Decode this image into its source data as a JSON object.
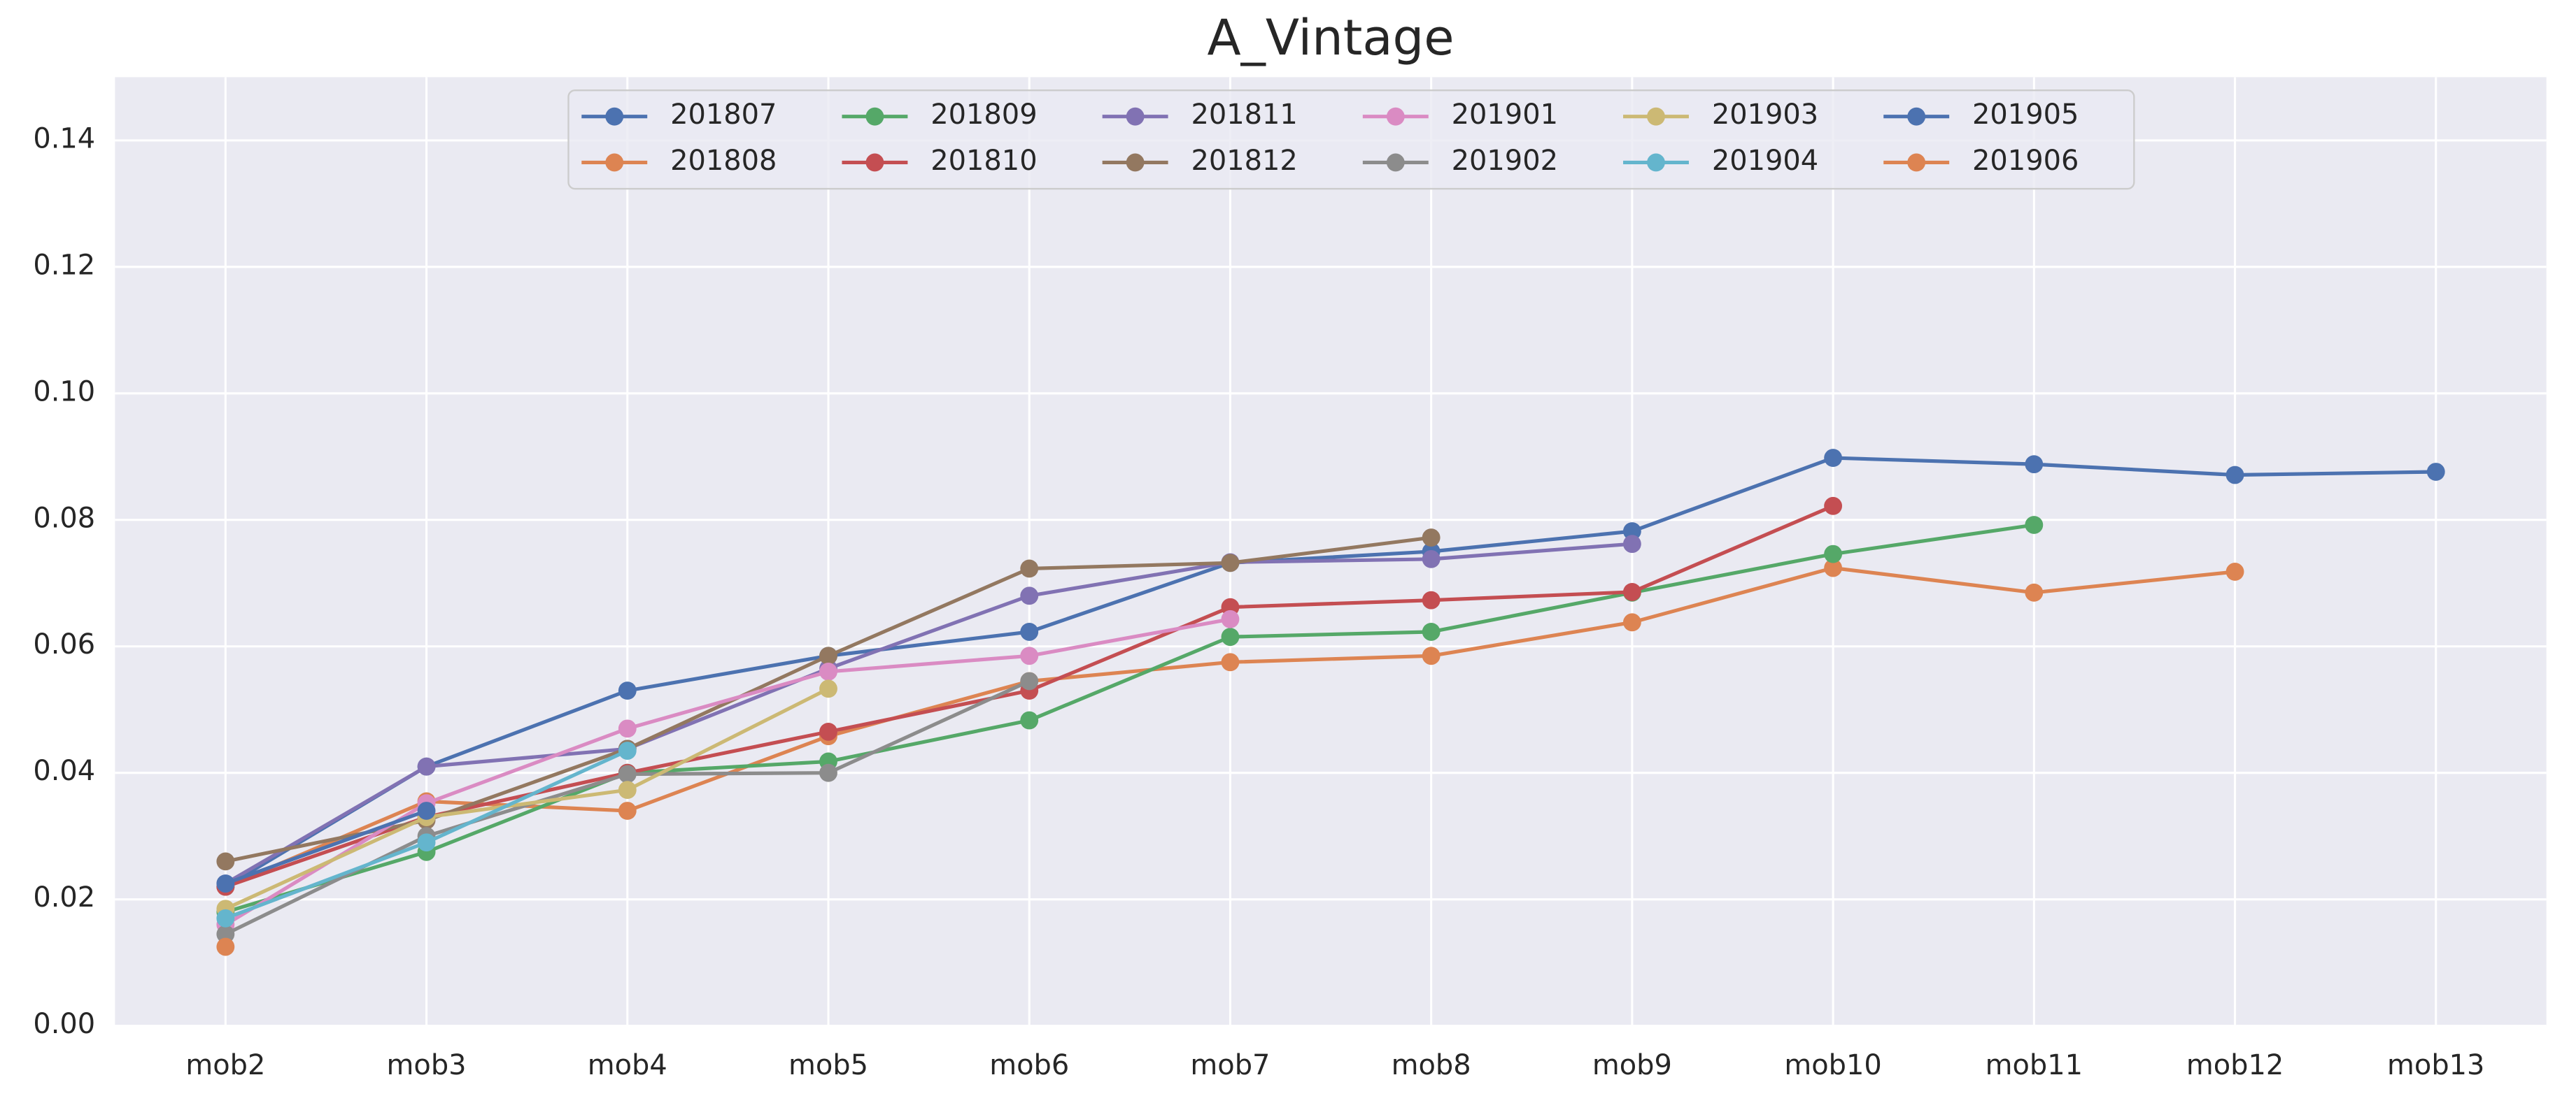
{
  "chart_data": {
    "type": "line",
    "title": "A_Vintage",
    "categories": [
      "mob2",
      "mob3",
      "mob4",
      "mob5",
      "mob6",
      "mob7",
      "mob8",
      "mob9",
      "mob10",
      "mob11",
      "mob12",
      "mob13"
    ],
    "series": [
      {
        "name": "201807",
        "color": "#4c72b0",
        "values": [
          0.022,
          0.041,
          0.053,
          0.0585,
          0.0623,
          0.0732,
          0.075,
          0.0782,
          0.0898,
          0.0888,
          0.0871,
          0.0876
        ]
      },
      {
        "name": "201808",
        "color": "#dd8452",
        "values": [
          0.022,
          0.0355,
          0.034,
          0.0458,
          0.0545,
          0.0575,
          0.0585,
          0.0638,
          0.0724,
          0.0685,
          0.0718,
          null
        ]
      },
      {
        "name": "201809",
        "color": "#55a868",
        "values": [
          0.018,
          0.0275,
          0.04,
          0.0418,
          0.0483,
          0.0615,
          0.0623,
          0.0685,
          0.0746,
          0.0792,
          null,
          null
        ]
      },
      {
        "name": "201810",
        "color": "#c44e52",
        "values": [
          0.022,
          0.033,
          0.04,
          0.0465,
          0.053,
          0.0662,
          0.0673,
          0.0686,
          0.0822,
          null,
          null,
          null
        ]
      },
      {
        "name": "201811",
        "color": "#8172b3",
        "values": [
          0.0225,
          0.041,
          0.0438,
          0.0565,
          0.068,
          0.0733,
          0.0738,
          0.0762,
          null,
          null,
          null,
          null
        ]
      },
      {
        "name": "201812",
        "color": "#937860",
        "values": [
          0.026,
          0.0325,
          0.0438,
          0.0585,
          0.0723,
          0.0732,
          0.0772,
          null,
          null,
          null,
          null,
          null
        ]
      },
      {
        "name": "201901",
        "color": "#da8bc3",
        "values": [
          0.016,
          0.0352,
          0.047,
          0.056,
          0.0585,
          0.0643,
          null,
          null,
          null,
          null,
          null,
          null
        ]
      },
      {
        "name": "201902",
        "color": "#8c8c8c",
        "values": [
          0.0145,
          0.03,
          0.0398,
          0.04,
          0.0545,
          null,
          null,
          null,
          null,
          null,
          null,
          null
        ]
      },
      {
        "name": "201903",
        "color": "#ccb974",
        "values": [
          0.0185,
          0.033,
          0.0373,
          0.0533,
          null,
          null,
          null,
          null,
          null,
          null,
          null,
          null
        ]
      },
      {
        "name": "201904",
        "color": "#64b5cd",
        "values": [
          0.017,
          0.029,
          0.0435,
          null,
          null,
          null,
          null,
          null,
          null,
          null,
          null,
          null
        ]
      },
      {
        "name": "201905",
        "color": "#4c72b0",
        "values": [
          0.0225,
          0.034,
          null,
          null,
          null,
          null,
          null,
          null,
          null,
          null,
          null,
          null
        ]
      },
      {
        "name": "201906",
        "color": "#dd8452",
        "values": [
          0.0125,
          null,
          null,
          null,
          null,
          null,
          null,
          null,
          null,
          null,
          null,
          null
        ]
      }
    ],
    "ylim": [
      0,
      0.15
    ],
    "yticks": [
      {
        "value": 0,
        "label": "0.00"
      },
      {
        "value": 0.02,
        "label": "0.02"
      },
      {
        "value": 0.04,
        "label": "0.04"
      },
      {
        "value": 0.06,
        "label": "0.06"
      },
      {
        "value": 0.08,
        "label": "0.08"
      },
      {
        "value": 0.1,
        "label": "0.10"
      },
      {
        "value": 0.12,
        "label": "0.12"
      },
      {
        "value": 0.14,
        "label": "0.14"
      }
    ],
    "grid": true,
    "legend": "upper center"
  }
}
